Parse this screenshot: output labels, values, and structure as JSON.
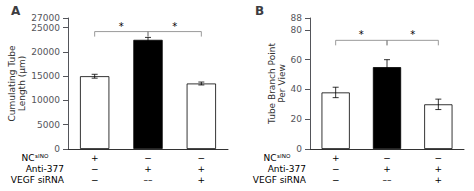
{
  "chart_data": [
    {
      "type": "bar",
      "title": "A",
      "ylabel": "Cumulating Tube\nLength (μm)",
      "categories": [
        null,
        null,
        null
      ],
      "values": [
        15000,
        22500,
        13500
      ],
      "errors": [
        400,
        500,
        300
      ],
      "colors": [
        "white",
        "black",
        "white"
      ],
      "ylim": [
        0,
        27000
      ],
      "yticks": [
        0,
        5000,
        10000,
        15000,
        20000,
        25000
      ],
      "grid": false,
      "annotations": [
        {
          "text": "*",
          "x": [
            0,
            1
          ],
          "y": 24200
        },
        {
          "text": "*",
          "x": [
            1,
            2
          ],
          "y": 24200
        }
      ],
      "table": {
        "rows": [
          "NCˢᴵᴺᴼ",
          "Anti-377",
          "VEGF siRNA"
        ],
        "cells": [
          [
            "+",
            "−",
            "−"
          ],
          [
            "−",
            "+",
            "+"
          ],
          [
            "−",
            "––",
            "+"
          ]
        ]
      }
    },
    {
      "type": "bar",
      "title": "B",
      "ylabel": "Tube Branch Point\nPer View",
      "categories": [
        null,
        null,
        null
      ],
      "values": [
        38,
        55,
        30
      ],
      "errors": [
        3.5,
        5,
        3.5
      ],
      "colors": [
        "white",
        "black",
        "white"
      ],
      "ylim": [
        0,
        88
      ],
      "yticks": [
        0,
        20,
        40,
        60,
        80
      ],
      "grid": false,
      "annotations": [
        {
          "text": "*",
          "x": [
            0,
            1
          ],
          "y": 73
        },
        {
          "text": "*",
          "x": [
            1,
            2
          ],
          "y": 73
        }
      ],
      "table": {
        "rows": [
          "NCˢᴵᴺᴼ",
          "Anti-377",
          "VEGF siRNA"
        ],
        "cells": [
          [
            "+",
            "−",
            "−"
          ],
          [
            "−",
            "+",
            "+"
          ],
          [
            "−",
            "––",
            "+"
          ]
        ]
      }
    }
  ]
}
